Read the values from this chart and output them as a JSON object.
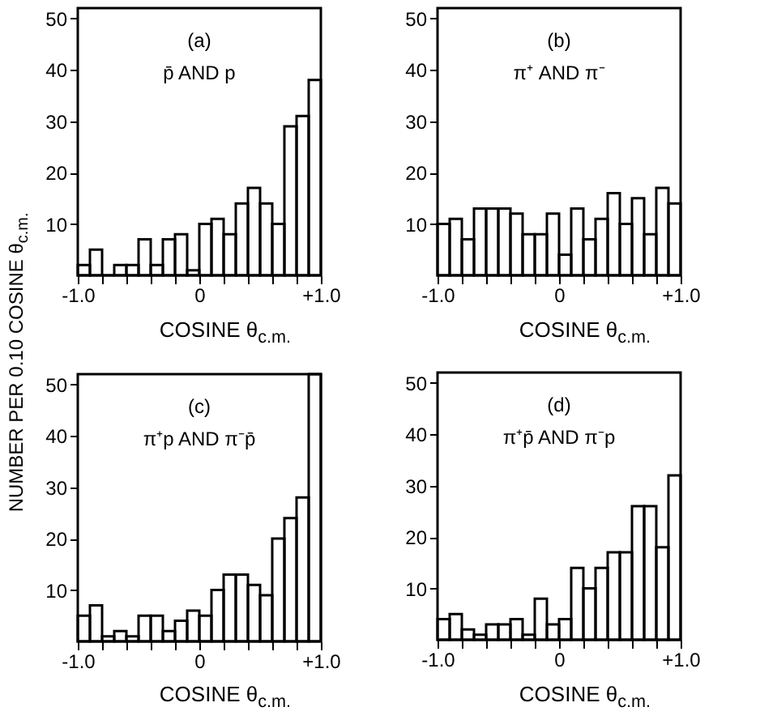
{
  "chart_data": [
    {
      "type": "histogram",
      "ylabel": "NUMBER PER 0.10 COSINE θ$_{c.m.}$",
      "xlabel": "COSINE θ$_{c.m.}$",
      "annotations": [
        "(a)",
        "p̄ AND p"
      ],
      "bins": [
        -1.0,
        -0.9,
        -0.8,
        -0.7,
        -0.6,
        -0.5,
        -0.4,
        -0.3,
        -0.2,
        -0.1,
        0,
        0.1,
        0.2,
        0.3,
        0.4,
        0.5,
        0.6,
        0.7,
        0.8,
        0.9,
        1.0
      ],
      "values": [
        2,
        5,
        0,
        2,
        2,
        7,
        2,
        7,
        8,
        1,
        10,
        11,
        8,
        14,
        17,
        14,
        10,
        29,
        31,
        38
      ],
      "color": "#000000",
      "xlim": [
        -1,
        1
      ],
      "ylim": [
        0,
        52
      ],
      "xticks": [
        {
          "value": -1,
          "label": "-1.0"
        },
        {
          "value": -0.8,
          "label": null
        },
        {
          "value": -0.6,
          "label": null
        },
        {
          "value": -0.4,
          "label": null
        },
        {
          "value": -0.2,
          "label": null
        },
        {
          "value": 0,
          "label": "0"
        },
        {
          "value": 0.2,
          "label": null
        },
        {
          "value": 0.4,
          "label": null
        },
        {
          "value": 0.6,
          "label": null
        },
        {
          "value": 0.8,
          "label": null
        },
        {
          "value": 1,
          "label": "+1.0"
        }
      ],
      "yticks": [
        10,
        20,
        30,
        40,
        50
      ]
    },
    {
      "type": "histogram",
      "xlabel": "COSINE θ$_{c.m.}$",
      "annotations": [
        "(b)",
        "π⁺ AND π⁻"
      ],
      "bins": [
        -1.0,
        -0.9,
        -0.8,
        -0.7,
        -0.6,
        -0.5,
        -0.4,
        -0.3,
        -0.2,
        -0.1,
        0,
        0.1,
        0.2,
        0.3,
        0.4,
        0.5,
        0.6,
        0.7,
        0.8,
        0.9,
        1.0
      ],
      "values": [
        10,
        11,
        7,
        13,
        13,
        13,
        12,
        8,
        8,
        12,
        4,
        13,
        7,
        11,
        16,
        10,
        15,
        8,
        17,
        14
      ],
      "color": "#000000",
      "xlim": [
        -1,
        1
      ],
      "ylim": [
        0,
        52
      ],
      "xticks": [
        {
          "value": -1,
          "label": "-1.0"
        },
        {
          "value": -0.8,
          "label": null
        },
        {
          "value": -0.6,
          "label": null
        },
        {
          "value": -0.4,
          "label": null
        },
        {
          "value": -0.2,
          "label": null
        },
        {
          "value": 0,
          "label": "0"
        },
        {
          "value": 0.2,
          "label": null
        },
        {
          "value": 0.4,
          "label": null
        },
        {
          "value": 0.6,
          "label": null
        },
        {
          "value": 0.8,
          "label": null
        },
        {
          "value": 1,
          "label": "+1.0"
        }
      ],
      "yticks": [
        10,
        20,
        30,
        40,
        50
      ]
    },
    {
      "type": "histogram",
      "xlabel": "COSINE θ$_{c.m.}$",
      "annotations": [
        "(c)",
        "π⁺p AND π⁻p̄"
      ],
      "bins": [
        -1.0,
        -0.9,
        -0.8,
        -0.7,
        -0.6,
        -0.5,
        -0.4,
        -0.3,
        -0.2,
        -0.1,
        0,
        0.1,
        0.2,
        0.3,
        0.4,
        0.5,
        0.6,
        0.7,
        0.8,
        0.9,
        1.0
      ],
      "values": [
        5,
        7,
        1,
        2,
        1,
        5,
        5,
        2,
        4,
        6,
        5,
        10,
        13,
        13,
        11,
        9,
        20,
        24,
        28,
        52
      ],
      "color": "#000000",
      "xlim": [
        -1,
        1
      ],
      "ylim": [
        0,
        52
      ],
      "xticks": [
        {
          "value": -1,
          "label": "-1.0"
        },
        {
          "value": -0.8,
          "label": null
        },
        {
          "value": -0.6,
          "label": null
        },
        {
          "value": -0.4,
          "label": null
        },
        {
          "value": -0.2,
          "label": null
        },
        {
          "value": 0,
          "label": "0"
        },
        {
          "value": 0.2,
          "label": null
        },
        {
          "value": 0.4,
          "label": null
        },
        {
          "value": 0.6,
          "label": null
        },
        {
          "value": 0.8,
          "label": null
        },
        {
          "value": 1,
          "label": "+1.0"
        }
      ],
      "yticks": [
        10,
        20,
        30,
        40,
        50
      ]
    },
    {
      "type": "histogram",
      "xlabel": "COSINE θ$_{c.m.}$",
      "annotations": [
        "(d)",
        "π⁺p̄ AND π⁻p"
      ],
      "bins": [
        -1.0,
        -0.9,
        -0.8,
        -0.7,
        -0.6,
        -0.5,
        -0.4,
        -0.3,
        -0.2,
        -0.1,
        0,
        0.1,
        0.2,
        0.3,
        0.4,
        0.5,
        0.6,
        0.7,
        0.8,
        0.9,
        1.0
      ],
      "values": [
        4,
        5,
        2,
        1,
        3,
        3,
        4,
        1,
        8,
        3,
        4,
        14,
        10,
        14,
        17,
        17,
        26,
        26,
        18,
        32
      ],
      "color": "#000000",
      "xlim": [
        -1,
        1
      ],
      "ylim": [
        0,
        52
      ],
      "xticks": [
        {
          "value": -1,
          "label": "-1.0"
        },
        {
          "value": -0.8,
          "label": null
        },
        {
          "value": -0.6,
          "label": null
        },
        {
          "value": -0.4,
          "label": null
        },
        {
          "value": -0.2,
          "label": null
        },
        {
          "value": 0,
          "label": "0"
        },
        {
          "value": 0.2,
          "label": null
        },
        {
          "value": 0.4,
          "label": null
        },
        {
          "value": 0.6,
          "label": null
        },
        {
          "value": 0.8,
          "label": null
        },
        {
          "value": 1,
          "label": "+1.0"
        }
      ],
      "yticks": [
        10,
        20,
        30,
        40,
        50
      ]
    }
  ]
}
